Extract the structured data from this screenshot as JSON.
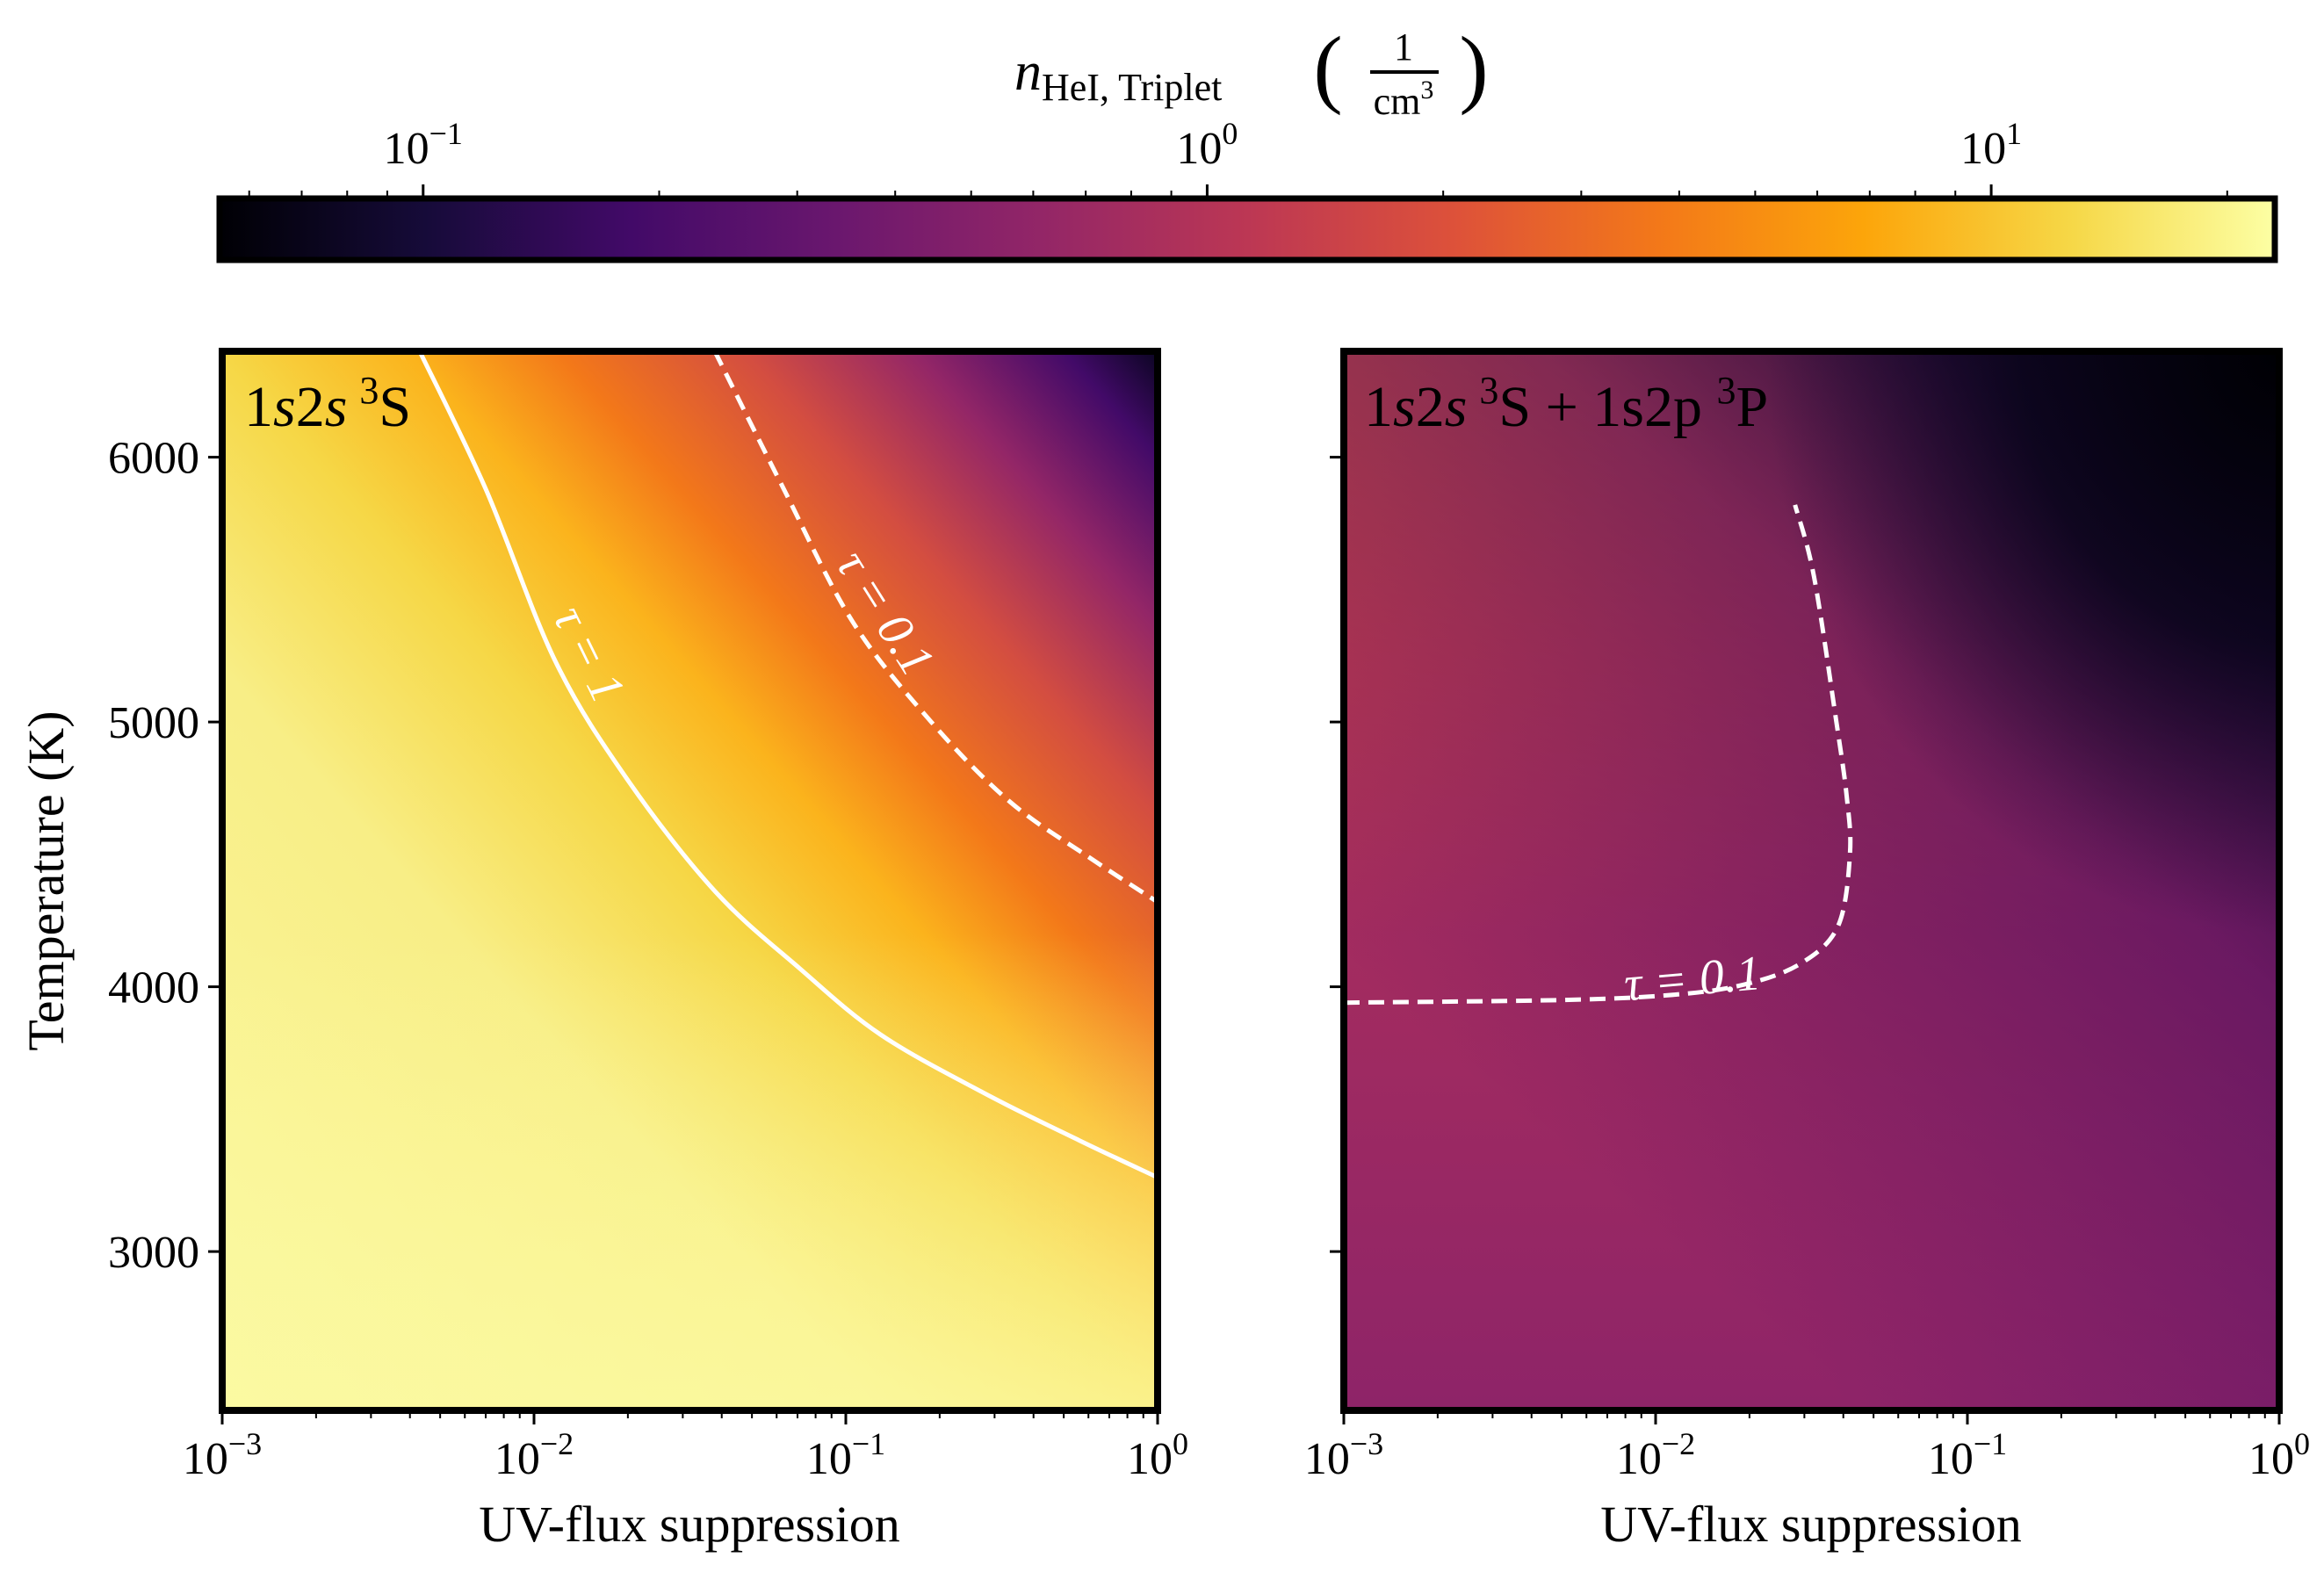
{
  "chart_data": [
    {
      "type": "heatmap",
      "panel_label": "1s2s ³S",
      "panel_label_parts": {
        "a": "1",
        "b": "s",
        "c": "2",
        "d": "s",
        "sup": "3",
        "e": "S"
      },
      "xlabel": "UV-flux suppression",
      "ylabel": "Temperature (K)",
      "x_scale": "log",
      "xlim": [
        0.001,
        1
      ],
      "ylim": [
        2400,
        6400
      ],
      "x_tick_values": [
        0.001,
        0.01,
        0.1,
        1
      ],
      "x_tick_labels": [
        {
          "base": "10",
          "exp": "−3"
        },
        {
          "base": "10",
          "exp": "−2"
        },
        {
          "base": "10",
          "exp": "−1"
        },
        {
          "base": "10",
          "exp": "0"
        }
      ],
      "y_ticks": [
        3000,
        4000,
        5000,
        6000
      ],
      "y_tick_labels": [
        "3000",
        "4000",
        "5000",
        "6000"
      ],
      "colormap": "inferno",
      "contours": [
        {
          "label": "τ = 1",
          "style": "solid",
          "color": "#ffffff",
          "points": [
            [
              0.0043,
              6400
            ],
            [
              0.007,
              5880
            ],
            [
              0.0117,
              5230
            ],
            [
              0.02,
              4780
            ],
            [
              0.0381,
              4360
            ],
            [
              0.071,
              4070
            ],
            [
              0.129,
              3820
            ],
            [
              0.276,
              3600
            ],
            [
              0.56,
              3420
            ],
            [
              1.0,
              3280
            ]
          ]
        },
        {
          "label": "τ = 0.1",
          "style": "dashed",
          "color": "#ffffff",
          "points": [
            [
              0.038,
              6400
            ],
            [
              0.062,
              5900
            ],
            [
              0.105,
              5380
            ],
            [
              0.188,
              5000
            ],
            [
              0.335,
              4700
            ],
            [
              0.601,
              4490
            ],
            [
              1.0,
              4320
            ]
          ]
        }
      ]
    },
    {
      "type": "heatmap",
      "panel_label": "1s2s ³S + 1s2p ³P",
      "panel_label_parts": {
        "a": "1",
        "b": "s",
        "c": "2",
        "d": "s",
        "sup": "3",
        "e": "S + 1s2p ",
        "sup2": "3",
        "f": "P"
      },
      "xlabel": "UV-flux suppression",
      "x_scale": "log",
      "xlim": [
        0.001,
        1
      ],
      "ylim": [
        2400,
        6400
      ],
      "x_tick_values": [
        0.001,
        0.01,
        0.1,
        1
      ],
      "x_tick_labels": [
        {
          "base": "10",
          "exp": "−3"
        },
        {
          "base": "10",
          "exp": "−2"
        },
        {
          "base": "10",
          "exp": "−1"
        },
        {
          "base": "10",
          "exp": "0"
        }
      ],
      "y_ticks": [
        3000,
        4000,
        5000,
        6000
      ],
      "colormap": "inferno",
      "contours": [
        {
          "label": "τ = 0.1",
          "style": "dashed",
          "color": "#ffffff",
          "points": [
            [
              0.001,
              3940
            ],
            [
              0.005,
              3950
            ],
            [
              0.0115,
              3970
            ],
            [
              0.0195,
              4010
            ],
            [
              0.0294,
              4090
            ],
            [
              0.0385,
              4230
            ],
            [
              0.042,
              4500
            ],
            [
              0.041,
              4720
            ],
            [
              0.038,
              5000
            ],
            [
              0.0322,
              5550
            ],
            [
              0.028,
              5820
            ]
          ]
        }
      ]
    }
  ],
  "colorbar": {
    "label": {
      "n": "n",
      "sub": "HeI, Triplet",
      "numerator": "1",
      "denominator_base": "cm",
      "denominator_exp": "3"
    },
    "scale": "log",
    "range": [
      0.055,
      23
    ],
    "ticks": [
      0.1,
      1,
      10
    ],
    "tick_labels": [
      {
        "base": "10",
        "exp": "−1"
      },
      {
        "base": "10",
        "exp": "0"
      },
      {
        "base": "10",
        "exp": "1"
      }
    ],
    "colormap": "inferno"
  }
}
